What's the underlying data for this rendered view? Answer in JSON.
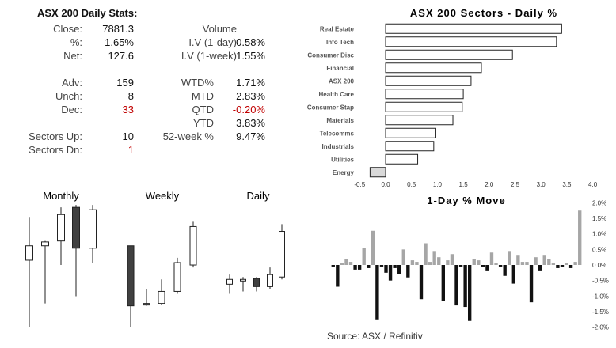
{
  "stats": {
    "title": "ASX 200 Daily Stats:",
    "left_rows": [
      {
        "label": "Close:",
        "value": "7881.3",
        "neg": false
      },
      {
        "label": "%:",
        "value": "1.65%",
        "neg": false
      },
      {
        "label": "Net:",
        "value": "127.6",
        "neg": false
      },
      {
        "label": "Adv:",
        "value": "159",
        "neg": false
      },
      {
        "label": "Unch:",
        "value": "8",
        "neg": false
      },
      {
        "label": "Dec:",
        "value": "33",
        "neg": true
      },
      {
        "label": "Sectors Up:",
        "value": "10",
        "neg": false
      },
      {
        "label": "Sectors Dn:",
        "value": "1",
        "neg": true
      }
    ],
    "right_top": [
      {
        "label": "Volume",
        "value": "",
        "neg": false
      },
      {
        "label": "I.V (1-day)",
        "value": "0.58%",
        "neg": false
      },
      {
        "label": "I.V (1-week)",
        "value": "1.55%",
        "neg": false
      }
    ],
    "right_bottom": [
      {
        "label": "WTD%",
        "value": "1.71%",
        "neg": false
      },
      {
        "label": "MTD",
        "value": "2.83%",
        "neg": false
      },
      {
        "label": "QTD",
        "value": "-0.20%",
        "neg": true
      },
      {
        "label": "YTD",
        "value": "3.83%",
        "neg": false
      },
      {
        "label": "52-week %",
        "value": "9.47%",
        "neg": false
      }
    ]
  },
  "source": "Source: ASX / Refinitiv",
  "chart_data": [
    {
      "type": "bar",
      "orientation": "horizontal",
      "title": "ASX 200 Sectors - Daily %",
      "categories": [
        "Real Estate",
        "Info Tech",
        "Consumer Disc",
        "Financial",
        "ASX 200",
        "Health Care",
        "Consumer Stap",
        "Materials",
        "Telecomms",
        "Industrials",
        "Utilities",
        "Energy"
      ],
      "values": [
        3.4,
        3.3,
        2.45,
        1.85,
        1.65,
        1.5,
        1.48,
        1.3,
        0.97,
        0.93,
        0.62,
        -0.3
      ],
      "xlim": [
        -0.5,
        4.0
      ],
      "xticks": [
        "-0.5",
        "0.0",
        "0.5",
        "1.0",
        "1.5",
        "2.0",
        "2.5",
        "3.0",
        "3.5",
        "4.0"
      ],
      "highlight": "Energy",
      "color": "#ffffff",
      "highlight_color": "#d9d9d9"
    },
    {
      "type": "candlestick",
      "title": "Monthly",
      "candles": [
        {
          "o": 6.4,
          "h": 7.3,
          "l": 5.0,
          "c": 6.7
        },
        {
          "o": 6.7,
          "h": 6.8,
          "l": 5.5,
          "c": 6.78
        },
        {
          "o": 6.8,
          "h": 7.5,
          "l": 6.3,
          "c": 7.35
        },
        {
          "o": 7.5,
          "h": 7.55,
          "l": 5.65,
          "c": 6.65
        },
        {
          "o": 6.65,
          "h": 7.55,
          "l": 6.35,
          "c": 7.45
        }
      ],
      "ylim": [
        5.0,
        7.7
      ]
    },
    {
      "type": "candlestick",
      "title": "Weekly",
      "candles": [
        {
          "o": 6.7,
          "h": 6.7,
          "l": 5.0,
          "c": 5.45
        },
        {
          "o": 5.48,
          "h": 5.8,
          "l": 5.45,
          "c": 5.5
        },
        {
          "o": 5.5,
          "h": 6.0,
          "l": 5.46,
          "c": 5.75
        },
        {
          "o": 5.75,
          "h": 6.45,
          "l": 5.7,
          "c": 6.35
        },
        {
          "o": 6.3,
          "h": 7.2,
          "l": 6.25,
          "c": 7.1
        }
      ],
      "ylim": [
        5.0,
        7.7
      ]
    },
    {
      "type": "candlestick",
      "title": "Daily",
      "candles": [
        {
          "o": 5.9,
          "h": 6.1,
          "l": 5.7,
          "c": 6.0
        },
        {
          "o": 6.0,
          "h": 6.05,
          "l": 5.75,
          "c": 6.0
        },
        {
          "o": 6.02,
          "h": 6.05,
          "l": 5.75,
          "c": 5.85
        },
        {
          "o": 5.85,
          "h": 6.25,
          "l": 5.8,
          "c": 6.1
        },
        {
          "o": 6.05,
          "h": 7.15,
          "l": 6.0,
          "c": 7.0
        }
      ],
      "ylim": [
        5.0,
        7.7
      ]
    },
    {
      "type": "bar",
      "title": "1-Day % Move",
      "ylim": [
        -2.0,
        2.0
      ],
      "yticks": [
        "2.0%",
        "1.5%",
        "1.0%",
        "0.5%",
        "0.0%",
        "-0.5%",
        "-1.0%",
        "-1.5%",
        "-2.0%"
      ],
      "values": [
        -0.05,
        -0.7,
        0.05,
        0.2,
        0.1,
        -0.15,
        -0.15,
        0.55,
        -0.1,
        1.1,
        -1.75,
        -0.05,
        -0.25,
        -0.5,
        -0.1,
        -0.3,
        0.5,
        -0.4,
        0.15,
        0.1,
        -1.1,
        0.7,
        0.1,
        0.45,
        0.25,
        -1.15,
        0.15,
        0.35,
        -1.3,
        -0.05,
        -1.35,
        -1.8,
        0.2,
        0.15,
        -0.05,
        -0.2,
        0.4,
        0.05,
        -0.05,
        -0.35,
        0.45,
        -0.6,
        0.3,
        0.1,
        0.1,
        -1.2,
        0.25,
        -0.2,
        0.3,
        0.2,
        0.05,
        -0.1,
        -0.05,
        0.05,
        -0.1,
        0.1,
        1.75
      ],
      "pos_color": "#a6a6a6",
      "neg_color": "#111111"
    }
  ]
}
